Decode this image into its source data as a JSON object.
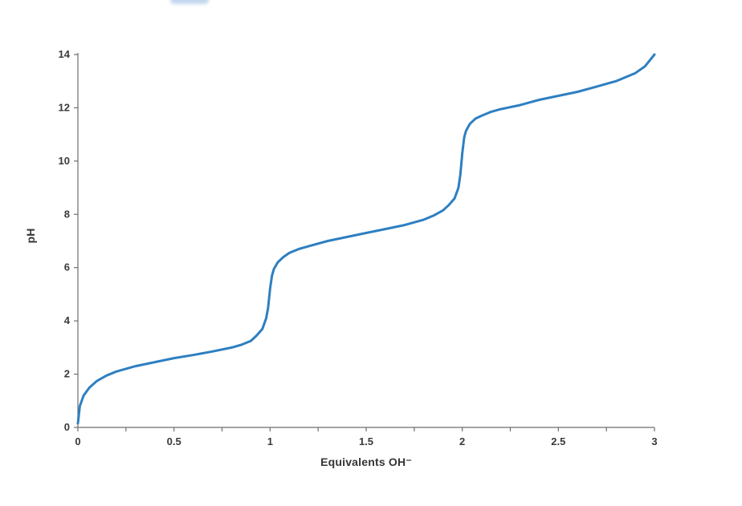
{
  "page": {
    "background": "#ffffff",
    "axis_color": "#6e6e6e",
    "tick_text_color": "#3a3a3a"
  },
  "chart_data": {
    "type": "line",
    "title": "",
    "xlabel": "Equivalents OH⁻",
    "ylabel": "pH",
    "xlim": [
      0,
      3
    ],
    "ylim": [
      0,
      14
    ],
    "x_ticks": [
      0,
      0.5,
      1,
      1.5,
      2,
      2.5,
      3
    ],
    "x_tick_labels": [
      "0",
      "0.5",
      "1",
      "1.5",
      "2",
      "2.5",
      "3"
    ],
    "x_minor_tick_step": 0.25,
    "y_ticks": [
      0,
      2,
      4,
      6,
      8,
      10,
      12,
      14
    ],
    "y_tick_labels": [
      "0",
      "2",
      "4",
      "6",
      "8",
      "10",
      "12",
      "14"
    ],
    "grid": false,
    "legend_position": "none",
    "line_color": "#2E7FC1",
    "line_width": 3,
    "series": [
      {
        "name": "triprotic-titration-curve",
        "points": [
          [
            0.0,
            0.15
          ],
          [
            0.01,
            0.8
          ],
          [
            0.03,
            1.2
          ],
          [
            0.06,
            1.5
          ],
          [
            0.1,
            1.75
          ],
          [
            0.15,
            1.95
          ],
          [
            0.2,
            2.1
          ],
          [
            0.3,
            2.3
          ],
          [
            0.4,
            2.45
          ],
          [
            0.5,
            2.6
          ],
          [
            0.6,
            2.72
          ],
          [
            0.7,
            2.85
          ],
          [
            0.8,
            3.0
          ],
          [
            0.85,
            3.1
          ],
          [
            0.9,
            3.25
          ],
          [
            0.93,
            3.45
          ],
          [
            0.96,
            3.7
          ],
          [
            0.98,
            4.1
          ],
          [
            0.99,
            4.5
          ],
          [
            1.0,
            5.2
          ],
          [
            1.01,
            5.7
          ],
          [
            1.02,
            5.95
          ],
          [
            1.04,
            6.2
          ],
          [
            1.07,
            6.4
          ],
          [
            1.1,
            6.55
          ],
          [
            1.15,
            6.7
          ],
          [
            1.2,
            6.8
          ],
          [
            1.3,
            7.0
          ],
          [
            1.4,
            7.15
          ],
          [
            1.5,
            7.3
          ],
          [
            1.6,
            7.45
          ],
          [
            1.7,
            7.6
          ],
          [
            1.8,
            7.8
          ],
          [
            1.85,
            7.95
          ],
          [
            1.9,
            8.15
          ],
          [
            1.93,
            8.35
          ],
          [
            1.96,
            8.6
          ],
          [
            1.98,
            9.0
          ],
          [
            1.99,
            9.5
          ],
          [
            2.0,
            10.3
          ],
          [
            2.01,
            10.9
          ],
          [
            2.02,
            11.15
          ],
          [
            2.04,
            11.4
          ],
          [
            2.07,
            11.6
          ],
          [
            2.1,
            11.7
          ],
          [
            2.15,
            11.85
          ],
          [
            2.2,
            11.95
          ],
          [
            2.3,
            12.1
          ],
          [
            2.4,
            12.3
          ],
          [
            2.5,
            12.45
          ],
          [
            2.6,
            12.6
          ],
          [
            2.7,
            12.8
          ],
          [
            2.8,
            13.0
          ],
          [
            2.9,
            13.3
          ],
          [
            2.95,
            13.55
          ],
          [
            3.0,
            14.0
          ]
        ]
      }
    ]
  }
}
